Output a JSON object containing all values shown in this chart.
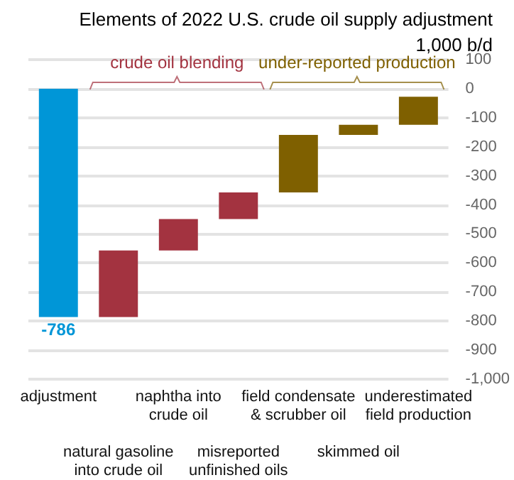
{
  "chart_data": {
    "type": "bar",
    "title": "Elements of 2022 U.S. crude oil supply adjustment",
    "ylabel": "1,000 b/d",
    "categories": [
      "adjustment",
      "natural gasoline into crude oil",
      "naphtha into crude oil",
      "misreported unfinished oils",
      "field condensate & scrubber oil",
      "skimmed oil",
      "underestimated field production"
    ],
    "values": [
      -786,
      229,
      108,
      92,
      198,
      35,
      96
    ],
    "base": [
      0,
      -786,
      -557,
      -449,
      -357,
      -159,
      -124
    ],
    "colors": [
      "#0096d7",
      "#a33340",
      "#a33340",
      "#a33340",
      "#7f6000",
      "#7f6000",
      "#7f6000"
    ],
    "value_labels": [
      "-786",
      null,
      null,
      null,
      null,
      null,
      null
    ],
    "annotations": [
      "crude oil blending",
      "under-reported production"
    ],
    "ylim": [
      -1000,
      100
    ],
    "yticks": [
      {
        "value": -1000,
        "label": "-1,000"
      },
      -900,
      -800,
      -700,
      -600,
      -500,
      -400,
      -300,
      -200,
      -100,
      0,
      100
    ],
    "grid": "y"
  }
}
